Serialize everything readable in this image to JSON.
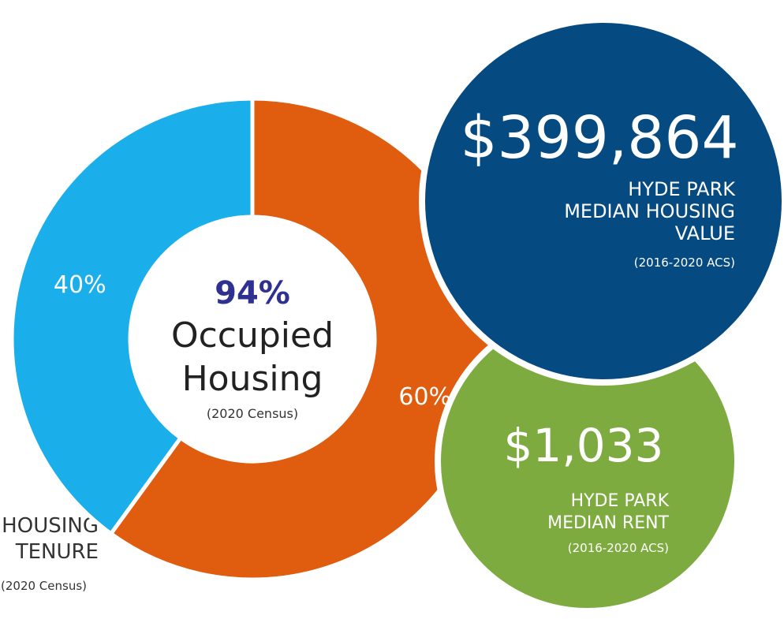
{
  "chart_data": {
    "type": "donut",
    "values": [
      60,
      40
    ],
    "value_labels": [
      "60%",
      "40%"
    ],
    "colors": [
      "#e05c0f",
      "#1aaeea"
    ],
    "center_lines": [
      "94%",
      "Occupied",
      "Housing",
      "(2020 Census)"
    ],
    "title_lines": [
      "HOUSING",
      "TENURE"
    ],
    "source": "(2020 Census)",
    "callouts": [
      {
        "value": "$399,864",
        "lines": [
          "HYDE PARK",
          "MEDIAN HOUSING",
          "VALUE"
        ],
        "source": "(2016-2020 ACS)",
        "color": "#054a80"
      },
      {
        "value": "$1,033",
        "lines": [
          "HYDE PARK",
          "MEDIAN RENT"
        ],
        "source": "(2016-2020 ACS)",
        "color": "#7eab3f"
      }
    ]
  }
}
